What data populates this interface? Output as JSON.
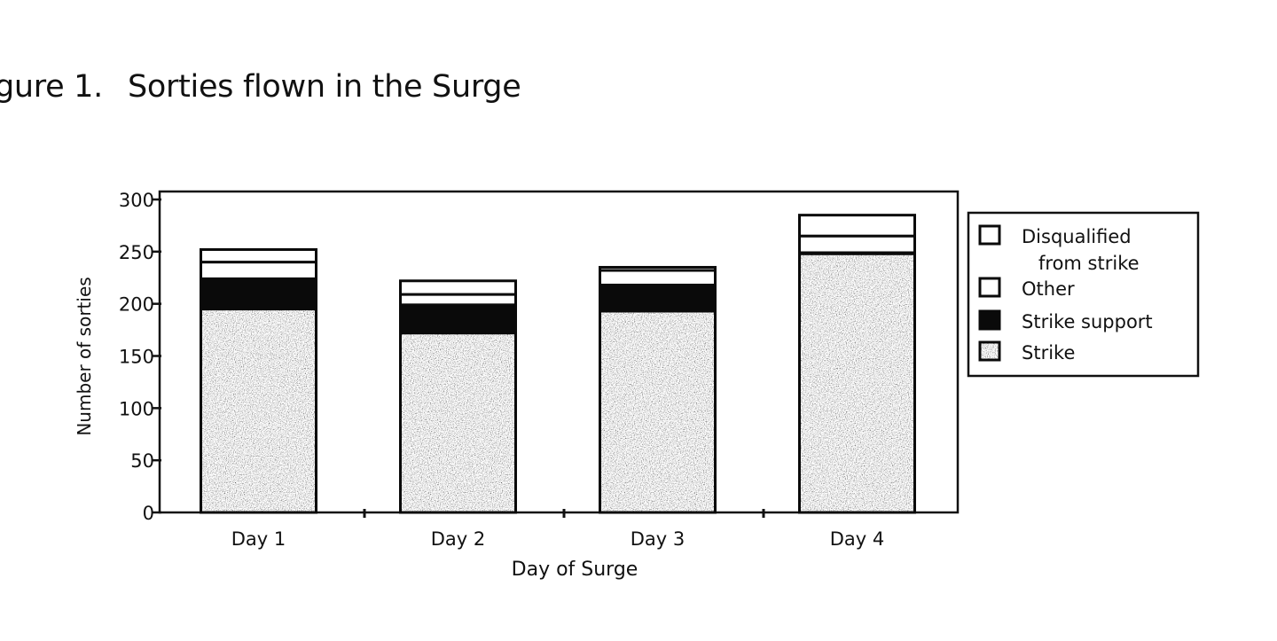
{
  "figure": {
    "label": "gure 1.",
    "title": "Sorties flown in the Surge"
  },
  "chart_data": {
    "type": "bar",
    "stacked": true,
    "title": "Sorties flown in the Surge",
    "xlabel": "Day of Surge",
    "ylabel": "Number of sorties",
    "ylim": [
      0,
      300
    ],
    "yticks": [
      0,
      50,
      100,
      150,
      200,
      250,
      300
    ],
    "categories": [
      "Day 1",
      "Day 2",
      "Day 3",
      "Day 4"
    ],
    "series": [
      {
        "name": "Strike",
        "values": [
          195,
          172,
          193,
          248
        ]
      },
      {
        "name": "Strike support",
        "values": [
          29,
          27,
          25,
          1
        ]
      },
      {
        "name": "Other",
        "values": [
          16,
          10,
          14,
          16
        ]
      },
      {
        "name": "Disqualified from strike",
        "values": [
          12,
          13,
          3,
          20
        ]
      }
    ],
    "legend": {
      "placement": "right",
      "entries": [
        {
          "label_lines": [
            "Disqualified",
            "from strike"
          ],
          "swatch": "white"
        },
        {
          "label_lines": [
            "Other"
          ],
          "swatch": "white"
        },
        {
          "label_lines": [
            "Strike support"
          ],
          "swatch": "black"
        },
        {
          "label_lines": [
            "Strike"
          ],
          "swatch": "stipple"
        }
      ]
    },
    "grid": false
  }
}
